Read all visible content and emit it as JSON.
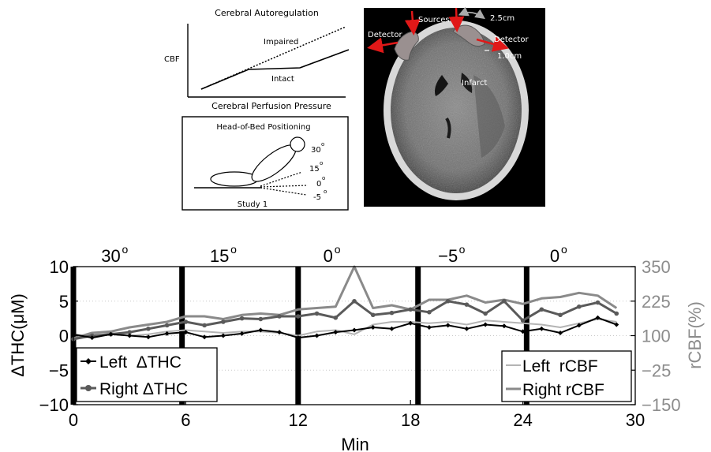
{
  "autoregulation": {
    "title": "Cerebral Autoregulation",
    "y_label": "CBF",
    "x_label": "Cerebral Perfusion Pressure",
    "impaired_label": "Impaired",
    "intact_label": "Intact"
  },
  "positioning": {
    "title": "Head-of-Bed Positioning",
    "study_label": "Study 1",
    "angles": [
      "30",
      "15",
      "0",
      "-5"
    ],
    "degree_mark": "o"
  },
  "ct_scan": {
    "sources_label": "Sources",
    "detector_left": "Detector",
    "detector_right": "Detector",
    "separation_label": "2.5cm",
    "distance_label": "1.0cm",
    "infarct_label": "Infarct"
  },
  "colors": {
    "left_thc": "#000000",
    "right_thc": "#5a5a5a",
    "left_rcbf": "#b4b4b4",
    "right_rcbf": "#8a8a8a",
    "right_axis": "#8c8c8c",
    "arrow": "#e01818",
    "probe": "#9a9090"
  },
  "chart_data": {
    "type": "line",
    "xlabel": "Min",
    "ylabel_left": "ΔTHC(μM)",
    "ylabel_right": "rCBF(%)",
    "xlim": [
      0,
      30
    ],
    "ylim_left": [
      -10,
      10
    ],
    "ylim_right": [
      -150,
      350
    ],
    "x_ticks": [
      "0",
      "6",
      "12",
      "18",
      "24",
      "30"
    ],
    "y_ticks_left": [
      "10",
      "5",
      "0",
      "−5",
      "−10"
    ],
    "y_ticks_right": [
      "350",
      "225",
      "100",
      "−25",
      "−150"
    ],
    "grid": "dotted horizontal",
    "phase_markers": [
      {
        "x": 0,
        "label": "30",
        "label_x": 2.0
      },
      {
        "x": 5.8,
        "label": "15",
        "label_x": 7.8
      },
      {
        "x": 12.0,
        "label": "0",
        "label_x": 13.6
      },
      {
        "x": 18.4,
        "label": "−5",
        "label_x": 20.0
      },
      {
        "x": 24.2,
        "label": "0",
        "label_x": 25.7
      }
    ],
    "series": [
      {
        "name": "Left  ΔTHC",
        "axis": "left",
        "x": [
          0,
          1,
          2,
          3,
          4,
          5,
          6,
          7,
          8,
          9,
          10,
          11,
          12,
          13,
          14,
          15,
          16,
          17,
          18,
          19,
          20,
          21,
          22,
          23,
          24,
          25,
          26,
          27,
          28,
          29
        ],
        "y": [
          0.2,
          -0.3,
          0.2,
          0.0,
          -0.2,
          0.3,
          0.5,
          -0.2,
          0.0,
          0.3,
          0.8,
          0.5,
          -0.3,
          0.0,
          0.5,
          0.8,
          1.2,
          1.0,
          1.8,
          1.2,
          1.5,
          1.0,
          1.6,
          1.4,
          0.6,
          1.0,
          0.4,
          1.5,
          2.6,
          1.6
        ]
      },
      {
        "name": "Right ΔTHC",
        "axis": "left",
        "x": [
          0,
          1,
          2,
          3,
          4,
          5,
          6,
          7,
          8,
          9,
          10,
          11,
          12,
          13,
          14,
          15,
          16,
          17,
          18,
          19,
          20,
          21,
          22,
          23,
          24,
          25,
          26,
          27,
          28,
          29
        ],
        "y": [
          -0.5,
          0.0,
          0.2,
          0.5,
          1.0,
          1.5,
          2.0,
          1.5,
          2.0,
          2.5,
          2.4,
          2.8,
          2.8,
          3.2,
          2.6,
          5.0,
          3.0,
          3.3,
          3.8,
          3.4,
          5.0,
          4.5,
          3.2,
          5.0,
          2.2,
          3.8,
          3.0,
          4.2,
          4.8,
          3.2
        ]
      },
      {
        "name": "Left  rCBF",
        "axis": "right",
        "x": [
          0,
          1,
          2,
          3,
          4,
          5,
          6,
          7,
          8,
          9,
          10,
          11,
          12,
          13,
          14,
          15,
          16,
          17,
          18,
          19,
          20,
          21,
          22,
          23,
          24,
          25,
          26,
          27,
          28,
          29
        ],
        "y": [
          105,
          95,
          110,
          100,
          105,
          115,
          120,
          115,
          110,
          115,
          115,
          110,
          100,
          115,
          120,
          105,
          140,
          150,
          150,
          145,
          150,
          140,
          155,
          150,
          145,
          140,
          130,
          145,
          160,
          150
        ]
      },
      {
        "name": "Right rCBF",
        "axis": "right",
        "x": [
          0,
          1,
          2,
          3,
          4,
          5,
          6,
          7,
          8,
          9,
          10,
          11,
          12,
          13,
          14,
          15,
          16,
          17,
          18,
          19,
          20,
          21,
          22,
          23,
          24,
          25,
          26,
          27,
          28,
          29
        ],
        "y": [
          90,
          110,
          115,
          130,
          140,
          150,
          170,
          170,
          160,
          175,
          180,
          175,
          195,
          200,
          205,
          350,
          200,
          210,
          195,
          230,
          230,
          245,
          220,
          230,
          215,
          235,
          240,
          255,
          245,
          200
        ]
      }
    ],
    "legend_left": {
      "placement": "lower-left",
      "entries": [
        "Left  ΔTHC",
        "Right ΔTHC"
      ]
    },
    "legend_right": {
      "placement": "lower-right",
      "entries": [
        "Left  rCBF",
        "Right rCBF"
      ]
    }
  }
}
